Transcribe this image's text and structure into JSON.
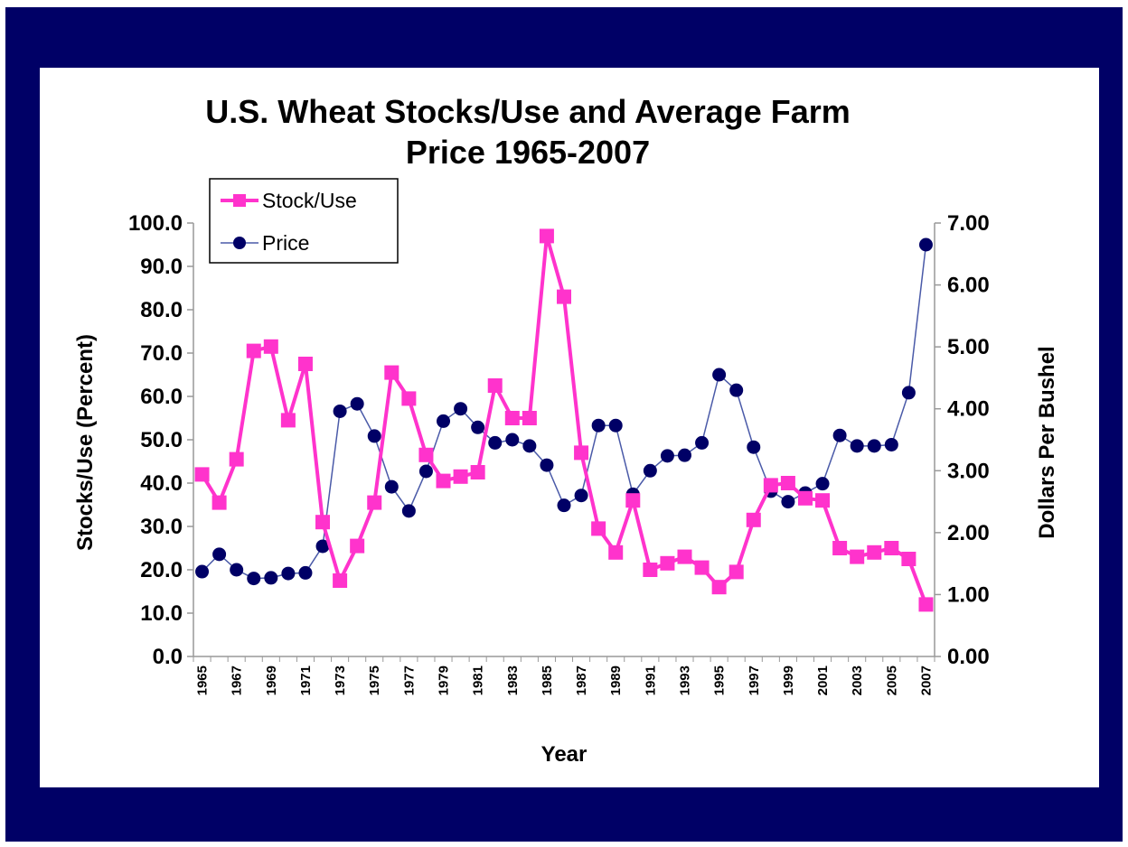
{
  "chart_data": {
    "type": "line",
    "title_lines": [
      "U.S. Wheat Stocks/Use and Average Farm",
      "Price 1965-2007"
    ],
    "xlabel": "Year",
    "ylabel_left": "Stocks/Use (Percent)",
    "ylabel_right": "Dollars Per Bushel",
    "x": [
      1965,
      1966,
      1967,
      1968,
      1969,
      1970,
      1971,
      1972,
      1973,
      1974,
      1975,
      1976,
      1977,
      1978,
      1979,
      1980,
      1981,
      1982,
      1983,
      1984,
      1985,
      1986,
      1987,
      1988,
      1989,
      1990,
      1991,
      1992,
      1993,
      1994,
      1995,
      1996,
      1997,
      1998,
      1999,
      2000,
      2001,
      2002,
      2003,
      2004,
      2005,
      2006,
      2007
    ],
    "x_tick_labels": [
      "1965",
      "1967",
      "1969",
      "1971",
      "1973",
      "1975",
      "1977",
      "1979",
      "1981",
      "1983",
      "1985",
      "1987",
      "1989",
      "1991",
      "1993",
      "1995",
      "1997",
      "1999",
      "2001",
      "2003",
      "2005",
      "2007"
    ],
    "ylim_left": [
      0,
      100
    ],
    "yticks_left": [
      "0.0",
      "10.0",
      "20.0",
      "30.0",
      "40.0",
      "50.0",
      "60.0",
      "70.0",
      "80.0",
      "90.0",
      "100.0"
    ],
    "ylim_right": [
      0,
      7
    ],
    "yticks_right": [
      "0.00",
      "1.00",
      "2.00",
      "3.00",
      "4.00",
      "5.00",
      "6.00",
      "7.00"
    ],
    "legend_position": "top-left",
    "grid": false,
    "series": [
      {
        "name": "Stock/Use",
        "axis": "left",
        "marker": "square",
        "color": "#ff33cc",
        "values": [
          42,
          35.5,
          45.5,
          70.5,
          71.5,
          54.5,
          67.5,
          31,
          17.5,
          25.5,
          35.5,
          65.5,
          59.5,
          46.5,
          40.5,
          41.5,
          42.5,
          62.5,
          55,
          55,
          97,
          83,
          47,
          29.5,
          24,
          36,
          20,
          21.5,
          23,
          20.5,
          16,
          19.5,
          31.5,
          39.5,
          40,
          36.5,
          36,
          25,
          23,
          24,
          25,
          22.5,
          12
        ]
      },
      {
        "name": "Price",
        "axis": "right",
        "marker": "circle",
        "color": "#000066",
        "values": [
          1.37,
          1.65,
          1.4,
          1.26,
          1.27,
          1.34,
          1.35,
          1.78,
          3.96,
          4.08,
          3.56,
          2.74,
          2.35,
          2.99,
          3.8,
          4.0,
          3.7,
          3.45,
          3.5,
          3.4,
          3.09,
          2.44,
          2.6,
          3.73,
          3.73,
          2.62,
          3.0,
          3.24,
          3.25,
          3.45,
          4.55,
          4.3,
          3.38,
          2.67,
          2.5,
          2.64,
          2.79,
          3.57,
          3.4,
          3.4,
          3.42,
          4.26,
          6.65
        ]
      }
    ]
  },
  "colors": {
    "frame": "#000066",
    "panel": "#ffffff",
    "stock_use": "#ff33cc",
    "price_marker": "#000066",
    "price_line": "#4a5aa8"
  }
}
